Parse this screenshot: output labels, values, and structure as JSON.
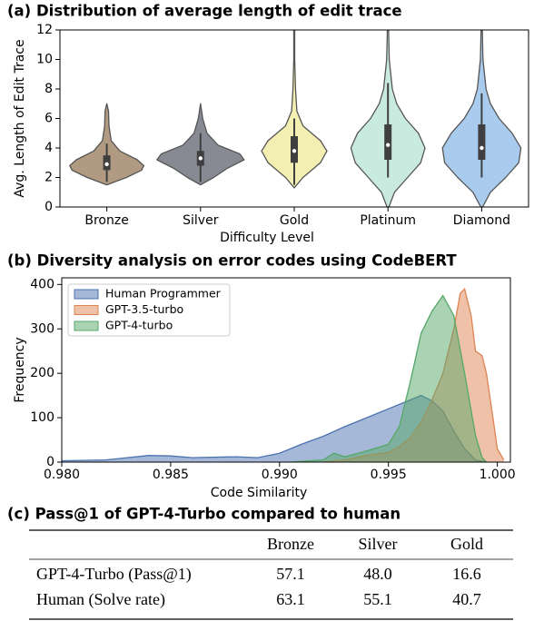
{
  "chart_data": [
    {
      "type": "violin",
      "title": "(a) Distribution of average length of edit trace",
      "xlabel": "Difficulty Level",
      "ylabel": "Avg. Length  of Edit Trace",
      "categories": [
        "Bronze",
        "Silver",
        "Gold",
        "Platinum",
        "Diamond"
      ],
      "colors": [
        "#b09a82",
        "#878a92",
        "#f3eeb1",
        "#c9ebdf",
        "#a9cbed"
      ],
      "edge_color": "#555555",
      "violins": [
        {
          "density_y": [
            1.5,
            2,
            2.5,
            2.8,
            3.2,
            3.8,
            4.5,
            5.5,
            6.5,
            7
          ],
          "density": [
            0,
            0.45,
            0.8,
            0.85,
            0.7,
            0.3,
            0.1,
            0.05,
            0.04,
            0
          ],
          "whisker": [
            1.7,
            4.3
          ],
          "q1": 2.5,
          "median": 2.9,
          "q3": 3.5
        },
        {
          "density_y": [
            1.5,
            2,
            2.6,
            3.2,
            3.6,
            4.2,
            5,
            6,
            7
          ],
          "density": [
            0,
            0.3,
            0.6,
            1.0,
            0.9,
            0.4,
            0.15,
            0.05,
            0
          ],
          "whisker": [
            1.7,
            5
          ],
          "q1": 2.8,
          "median": 3.3,
          "q3": 3.8
        },
        {
          "density_y": [
            1.3,
            2,
            3,
            3.8,
            4.5,
            5.5,
            6.5,
            8,
            10,
            12.5
          ],
          "density": [
            0,
            0.2,
            0.6,
            0.75,
            0.6,
            0.2,
            0.06,
            0.03,
            0.01,
            0.01
          ],
          "whisker": [
            1.5,
            6
          ],
          "q1": 3,
          "median": 3.8,
          "q3": 4.8
        },
        {
          "density_y": [
            0,
            1,
            2,
            3,
            4,
            5,
            6,
            7,
            8,
            10,
            12.5
          ],
          "density": [
            0.02,
            0.15,
            0.45,
            0.75,
            0.85,
            0.7,
            0.4,
            0.2,
            0.1,
            0.03,
            0.01
          ],
          "whisker": [
            2,
            8.4
          ],
          "q1": 3.2,
          "median": 4.2,
          "q3": 5.6
        },
        {
          "density_y": [
            0,
            1,
            2,
            3,
            4,
            5,
            6,
            7,
            8,
            10,
            12.5
          ],
          "density": [
            0.02,
            0.2,
            0.55,
            0.85,
            0.9,
            0.7,
            0.4,
            0.2,
            0.1,
            0.03,
            0.01
          ],
          "whisker": [
            2,
            7.7
          ],
          "q1": 3.2,
          "median": 4,
          "q3": 5.6
        }
      ],
      "ylim": [
        0,
        12
      ],
      "yticks": [
        0,
        2,
        4,
        6,
        8,
        10,
        12
      ]
    },
    {
      "type": "area",
      "title": "(b) Diversity analysis on error codes using CodeBERT",
      "xlabel": "Code Similarity",
      "ylabel": "Frequency",
      "legend": "upper left",
      "series": [
        {
          "name": "Human Programmer",
          "color": "#4c72b0",
          "x": [
            0.98,
            0.982,
            0.984,
            0.985,
            0.986,
            0.988,
            0.989,
            0.99,
            0.991,
            0.992,
            0.993,
            0.994,
            0.995,
            0.996,
            0.9965,
            0.997,
            0.9975,
            0.998,
            0.9985,
            0.999,
            0.9995
          ],
          "values": [
            3,
            5,
            15,
            14,
            10,
            12,
            10,
            20,
            40,
            58,
            80,
            100,
            120,
            140,
            150,
            138,
            115,
            70,
            30,
            5,
            0
          ]
        },
        {
          "name": "GPT-3.5-turbo",
          "color": "#dd8452",
          "x": [
            0.992,
            0.993,
            0.994,
            0.995,
            0.9955,
            0.996,
            0.9965,
            0.997,
            0.9975,
            0.998,
            0.9983,
            0.9985,
            0.9988,
            0.999,
            0.9993,
            0.9995,
            0.9998,
            1.0,
            1.0003
          ],
          "values": [
            0,
            5,
            15,
            22,
            35,
            55,
            90,
            140,
            200,
            300,
            380,
            390,
            330,
            250,
            240,
            200,
            100,
            30,
            5
          ]
        },
        {
          "name": "GPT-4-turbo",
          "color": "#55a868",
          "x": [
            0.9905,
            0.992,
            0.9925,
            0.993,
            0.994,
            0.995,
            0.9955,
            0.996,
            0.9965,
            0.997,
            0.9975,
            0.998,
            0.9985,
            0.999,
            0.9993,
            0.9995
          ],
          "values": [
            0,
            5,
            20,
            12,
            25,
            40,
            80,
            180,
            290,
            340,
            375,
            330,
            200,
            60,
            10,
            0
          ]
        }
      ],
      "xlim": [
        0.98,
        1.0006
      ],
      "xticks": [
        {
          "value": 0.98,
          "label": "0.980"
        },
        0.985,
        {
          "value": 0.99,
          "label": "0.990"
        },
        0.995,
        {
          "value": 1.0,
          "label": "1.000"
        }
      ],
      "ylim": [
        0,
        415
      ],
      "yticks": [
        0,
        100,
        200,
        300,
        400
      ]
    }
  ],
  "table": {
    "title": "(c) Pass@1 of GPT-4-Turbo compared to human",
    "columns": [
      "Bronze",
      "Silver",
      "Gold"
    ],
    "rows": [
      {
        "label": "GPT-4-Turbo (Pass@1)",
        "values": [
          "57.1",
          "48.0",
          "16.6"
        ]
      },
      {
        "label": "Human (Solve rate)",
        "values": [
          "63.1",
          "55.1",
          "40.7"
        ]
      }
    ]
  }
}
